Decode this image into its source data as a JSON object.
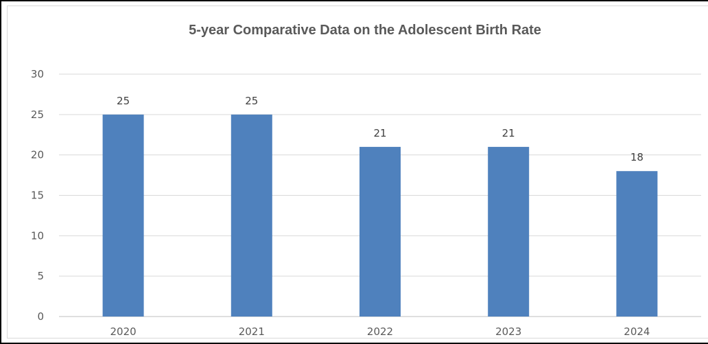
{
  "chart_data": {
    "type": "bar",
    "title": "5-year Comparative Data on the Adolescent Birth Rate",
    "categories": [
      "2020",
      "2021",
      "2022",
      "2023",
      "2024"
    ],
    "values": [
      25,
      25,
      21,
      21,
      18
    ],
    "ylim": [
      0,
      30
    ],
    "yticks": [
      0,
      5,
      10,
      15,
      20,
      25,
      30
    ],
    "grid": true,
    "legend": "none",
    "bar_color": "#4f81bd"
  }
}
